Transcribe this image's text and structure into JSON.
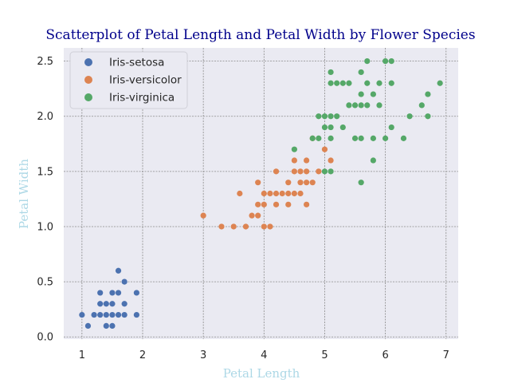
{
  "chart_data": {
    "type": "scatter",
    "title": "Scatterplot of Petal Length and Petal Width by Flower Species",
    "xlabel": "Petal Length",
    "ylabel": "Petal Width",
    "xlim": [
      0.7,
      7.2
    ],
    "ylim": [
      -0.02,
      2.62
    ],
    "xticks": [
      1,
      2,
      3,
      4,
      5,
      6,
      7
    ],
    "yticks": [
      0.0,
      0.5,
      1.0,
      1.5,
      2.0,
      2.5
    ],
    "xtick_labels": [
      "1",
      "2",
      "3",
      "4",
      "5",
      "6",
      "7"
    ],
    "ytick_labels": [
      "0.0",
      "0.5",
      "1.0",
      "1.5",
      "2.0",
      "2.5"
    ],
    "grid": true,
    "legend_position": "top-left",
    "background": "#eaeaf2",
    "series": [
      {
        "name": "Iris-setosa",
        "color": "#4c72b0",
        "points": [
          [
            1.0,
            0.2
          ],
          [
            1.1,
            0.1
          ],
          [
            1.2,
            0.2
          ],
          [
            1.3,
            0.2
          ],
          [
            1.3,
            0.3
          ],
          [
            1.3,
            0.4
          ],
          [
            1.4,
            0.1
          ],
          [
            1.4,
            0.2
          ],
          [
            1.4,
            0.3
          ],
          [
            1.5,
            0.1
          ],
          [
            1.5,
            0.2
          ],
          [
            1.5,
            0.3
          ],
          [
            1.5,
            0.4
          ],
          [
            1.6,
            0.2
          ],
          [
            1.6,
            0.4
          ],
          [
            1.6,
            0.6
          ],
          [
            1.7,
            0.2
          ],
          [
            1.7,
            0.3
          ],
          [
            1.7,
            0.5
          ],
          [
            1.9,
            0.2
          ],
          [
            1.9,
            0.4
          ]
        ]
      },
      {
        "name": "Iris-versicolor",
        "color": "#dd8452",
        "points": [
          [
            3.0,
            1.1
          ],
          [
            3.3,
            1.0
          ],
          [
            3.5,
            1.0
          ],
          [
            3.6,
            1.3
          ],
          [
            3.7,
            1.0
          ],
          [
            3.8,
            1.1
          ],
          [
            3.9,
            1.1
          ],
          [
            3.9,
            1.2
          ],
          [
            3.9,
            1.4
          ],
          [
            4.0,
            1.0
          ],
          [
            4.0,
            1.2
          ],
          [
            4.0,
            1.3
          ],
          [
            4.1,
            1.0
          ],
          [
            4.1,
            1.3
          ],
          [
            4.2,
            1.2
          ],
          [
            4.2,
            1.3
          ],
          [
            4.2,
            1.5
          ],
          [
            4.3,
            1.3
          ],
          [
            4.4,
            1.2
          ],
          [
            4.4,
            1.3
          ],
          [
            4.4,
            1.4
          ],
          [
            4.5,
            1.3
          ],
          [
            4.5,
            1.5
          ],
          [
            4.5,
            1.6
          ],
          [
            4.6,
            1.3
          ],
          [
            4.6,
            1.4
          ],
          [
            4.6,
            1.5
          ],
          [
            4.7,
            1.2
          ],
          [
            4.7,
            1.4
          ],
          [
            4.7,
            1.5
          ],
          [
            4.7,
            1.6
          ],
          [
            4.8,
            1.4
          ],
          [
            4.8,
            1.8
          ],
          [
            4.9,
            1.5
          ],
          [
            5.0,
            1.7
          ],
          [
            5.1,
            1.6
          ]
        ]
      },
      {
        "name": "Iris-virginica",
        "color": "#55a868",
        "points": [
          [
            4.5,
            1.7
          ],
          [
            4.8,
            1.8
          ],
          [
            4.9,
            1.8
          ],
          [
            4.9,
            2.0
          ],
          [
            5.0,
            1.5
          ],
          [
            5.0,
            1.9
          ],
          [
            5.0,
            2.0
          ],
          [
            5.1,
            1.5
          ],
          [
            5.1,
            1.8
          ],
          [
            5.1,
            1.9
          ],
          [
            5.1,
            2.0
          ],
          [
            5.1,
            2.3
          ],
          [
            5.1,
            2.4
          ],
          [
            5.2,
            2.0
          ],
          [
            5.2,
            2.3
          ],
          [
            5.3,
            1.9
          ],
          [
            5.3,
            2.3
          ],
          [
            5.4,
            2.1
          ],
          [
            5.4,
            2.3
          ],
          [
            5.5,
            1.8
          ],
          [
            5.5,
            2.1
          ],
          [
            5.6,
            1.4
          ],
          [
            5.6,
            1.8
          ],
          [
            5.6,
            2.1
          ],
          [
            5.6,
            2.2
          ],
          [
            5.6,
            2.4
          ],
          [
            5.7,
            2.1
          ],
          [
            5.7,
            2.3
          ],
          [
            5.7,
            2.5
          ],
          [
            5.8,
            1.6
          ],
          [
            5.8,
            1.8
          ],
          [
            5.8,
            2.2
          ],
          [
            5.9,
            2.1
          ],
          [
            5.9,
            2.3
          ],
          [
            6.0,
            1.8
          ],
          [
            6.0,
            2.5
          ],
          [
            6.1,
            1.9
          ],
          [
            6.1,
            2.3
          ],
          [
            6.1,
            2.5
          ],
          [
            6.3,
            1.8
          ],
          [
            6.4,
            2.0
          ],
          [
            6.6,
            2.1
          ],
          [
            6.7,
            2.0
          ],
          [
            6.7,
            2.2
          ],
          [
            6.9,
            2.3
          ]
        ]
      }
    ]
  }
}
